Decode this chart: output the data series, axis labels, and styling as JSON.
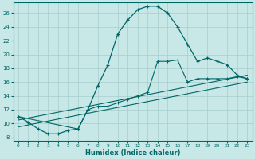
{
  "xlabel": "Humidex (Indice chaleur)",
  "xlim": [
    -0.5,
    23.5
  ],
  "ylim": [
    7.5,
    27.5
  ],
  "xticks": [
    0,
    1,
    2,
    3,
    4,
    5,
    6,
    7,
    8,
    9,
    10,
    11,
    12,
    13,
    14,
    15,
    16,
    17,
    18,
    19,
    20,
    21,
    22,
    23
  ],
  "yticks": [
    8,
    10,
    12,
    14,
    16,
    18,
    20,
    22,
    24,
    26
  ],
  "bg_color": "#c8e8e8",
  "grid_color": "#a8cccc",
  "line_color": "#006666",
  "line1_x": [
    0,
    1,
    2,
    3,
    4,
    5,
    6,
    7,
    8,
    9,
    10,
    11,
    12,
    13,
    14,
    15,
    16,
    17,
    18,
    19,
    20,
    21,
    22,
    23
  ],
  "line1_y": [
    11.0,
    10.2,
    9.2,
    8.5,
    8.5,
    9.0,
    9.2,
    12.0,
    15.5,
    18.5,
    23.0,
    25.0,
    26.5,
    27.0,
    27.0,
    26.0,
    24.0,
    21.5,
    19.0,
    19.5,
    19.0,
    18.5,
    17.0,
    16.5
  ],
  "line2_x": [
    0,
    6,
    7,
    8,
    9,
    10,
    11,
    12,
    13,
    14,
    15,
    16,
    17,
    18,
    19,
    20,
    21,
    22,
    23
  ],
  "line2_y": [
    11.0,
    9.2,
    12.0,
    12.5,
    12.5,
    13.0,
    13.5,
    14.0,
    14.5,
    19.0,
    19.0,
    19.2,
    16.0,
    16.5,
    16.5,
    16.5,
    16.5,
    16.8,
    16.5
  ],
  "line3_x": [
    0,
    23
  ],
  "line3_y": [
    9.5,
    16.0
  ],
  "line4_x": [
    0,
    23
  ],
  "line4_y": [
    10.5,
    17.0
  ]
}
